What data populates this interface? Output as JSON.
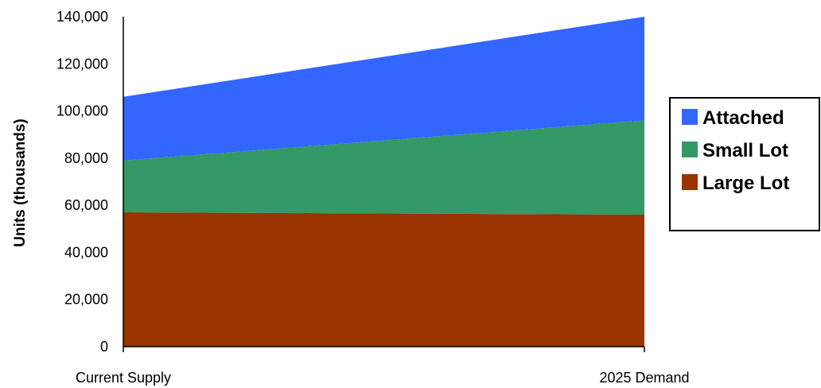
{
  "chart_data": {
    "type": "area",
    "stacked": true,
    "categories": [
      "Current Supply",
      "2025 Demand"
    ],
    "series": [
      {
        "name": "Large Lot",
        "values": [
          57000,
          56000
        ],
        "color": "#993300"
      },
      {
        "name": "Small Lot",
        "values": [
          22000,
          40000
        ],
        "color": "#339966"
      },
      {
        "name": "Attached",
        "values": [
          27000,
          44000
        ],
        "color": "#3366FF"
      }
    ],
    "ylabel": "Units (thousands)",
    "xlabel": "",
    "title": "",
    "ylim": [
      0,
      140000
    ],
    "yticks": [
      0,
      20000,
      40000,
      60000,
      80000,
      100000,
      120000,
      140000
    ],
    "ytick_labels": [
      "0",
      "20,000",
      "40,000",
      "60,000",
      "80,000",
      "100,000",
      "120,000",
      "140,000"
    ],
    "grid": false,
    "legend": {
      "position": "right",
      "order": [
        "Attached",
        "Small Lot",
        "Large Lot"
      ]
    }
  }
}
